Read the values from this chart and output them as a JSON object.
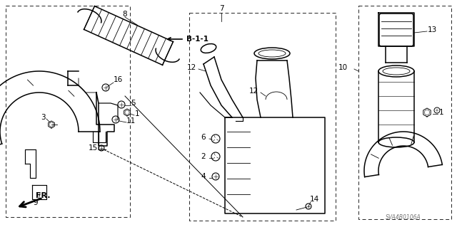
{
  "bg_color": "#ffffff",
  "line_color": "#000000",
  "diagram_code": "SVA4B0106A",
  "figsize": [
    6.4,
    3.19
  ],
  "dpi": 100
}
